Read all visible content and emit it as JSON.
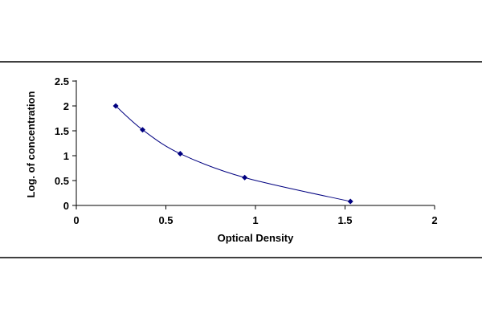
{
  "chart_data": {
    "type": "scatter",
    "title": "",
    "xlabel": "Optical Density",
    "ylabel": "Log. of concentration",
    "xlim": [
      0,
      2
    ],
    "ylim": [
      0,
      2.5
    ],
    "x_ticks": [
      "0",
      "0.5",
      "1",
      "1.5",
      "2"
    ],
    "y_ticks": [
      "0",
      "0.5",
      "1",
      "1.5",
      "2",
      "2.5"
    ],
    "x_tick_values": [
      0,
      0.5,
      1,
      1.5,
      2
    ],
    "y_tick_values": [
      0,
      0.5,
      1,
      1.5,
      2,
      2.5
    ],
    "grid": false,
    "legend": "none",
    "trendline": "smooth curve through points",
    "series": [
      {
        "x": [
          0.22,
          0.37,
          0.58,
          0.94,
          1.53
        ],
        "y": [
          2.0,
          1.52,
          1.04,
          0.56,
          0.08
        ],
        "marker": "diamond",
        "color": "#000080"
      }
    ]
  }
}
